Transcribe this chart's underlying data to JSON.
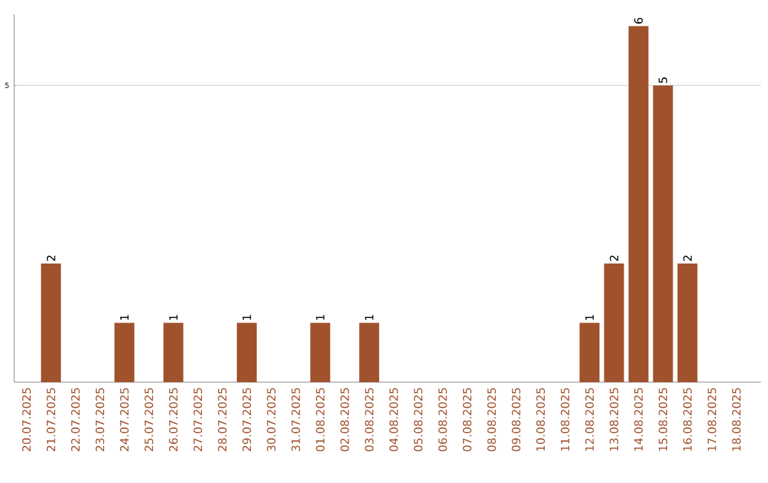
{
  "chart_data": {
    "type": "bar",
    "categories": [
      "20.07.2025",
      "21.07.2025",
      "22.07.2025",
      "23.07.2025",
      "24.07.2025",
      "25.07.2025",
      "26.07.2025",
      "27.07.2025",
      "28.07.2025",
      "29.07.2025",
      "30.07.2025",
      "31.07.2025",
      "01.08.2025",
      "02.08.2025",
      "03.08.2025",
      "04.08.2025",
      "05.08.2025",
      "06.08.2025",
      "07.08.2025",
      "08.08.2025",
      "09.08.2025",
      "10.08.2025",
      "11.08.2025",
      "12.08.2025",
      "13.08.2025",
      "14.08.2025",
      "15.08.2025",
      "16.08.2025",
      "17.08.2025",
      "18.08.2025"
    ],
    "values": [
      0,
      2,
      0,
      0,
      1,
      0,
      1,
      0,
      0,
      1,
      0,
      0,
      1,
      0,
      1,
      0,
      0,
      0,
      0,
      0,
      0,
      0,
      0,
      1,
      2,
      6,
      5,
      2,
      0,
      0
    ],
    "value_labels": [
      null,
      "2",
      null,
      null,
      "1",
      null,
      "1",
      null,
      null,
      "1",
      null,
      null,
      "1",
      null,
      "1",
      null,
      null,
      null,
      null,
      null,
      null,
      null,
      null,
      "1",
      "2",
      "6",
      "5",
      "2",
      null,
      null
    ],
    "color": "#a0522d",
    "ylim": [
      0,
      6.2
    ],
    "yticks": [
      5
    ],
    "grid": "y"
  }
}
